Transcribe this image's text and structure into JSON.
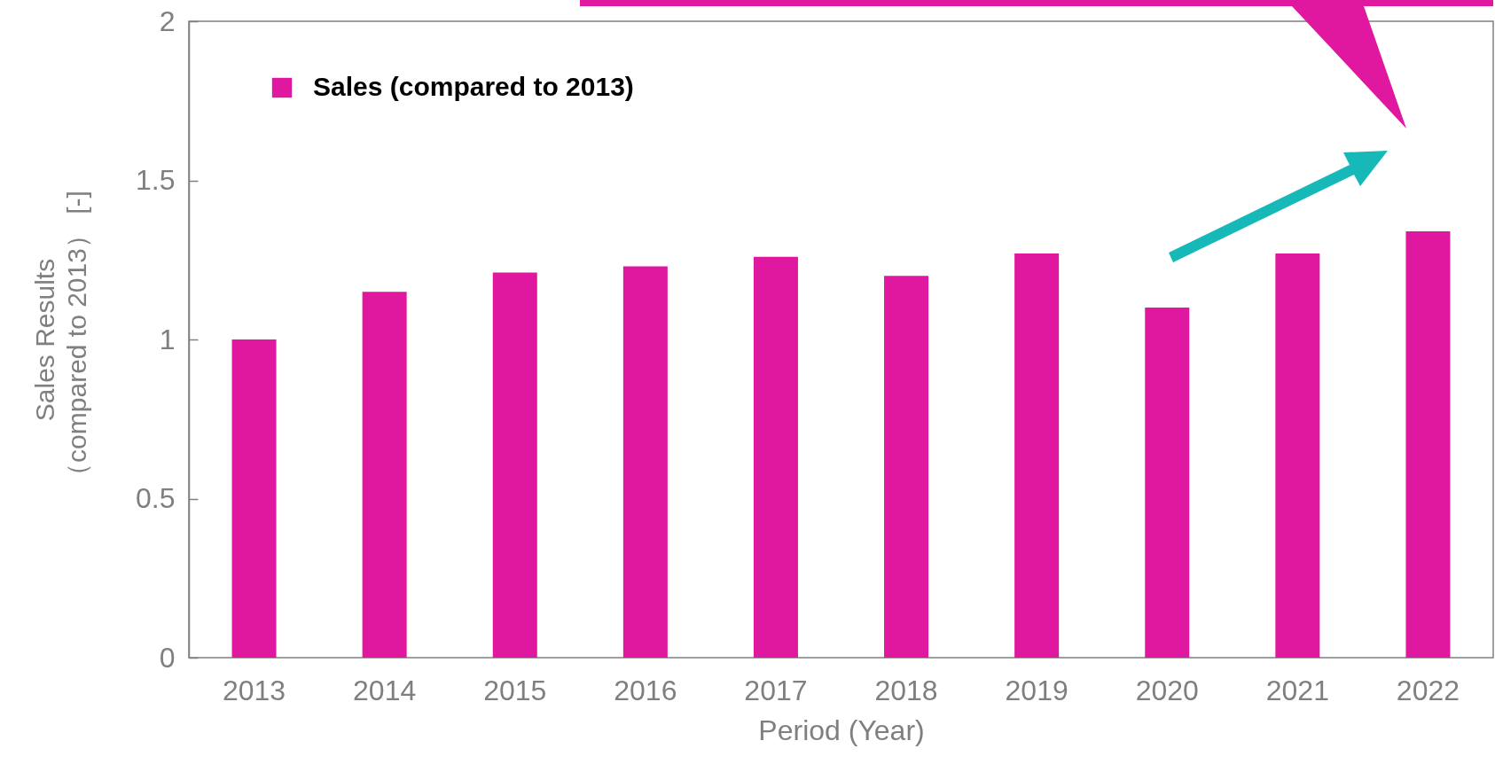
{
  "chart_data": {
    "type": "bar",
    "ylabel": "Sales Results\n（compared to 2013） [-]",
    "xlabel": "Period (Year)",
    "categories": [
      "2013",
      "2014",
      "2015",
      "2016",
      "2017",
      "2018",
      "2019",
      "2020",
      "2021",
      "2022"
    ],
    "series": [
      {
        "name": "Sales (compared to 2013)",
        "color": "#e0179f",
        "values": [
          1.0,
          1.15,
          1.21,
          1.23,
          1.26,
          1.2,
          1.27,
          1.1,
          1.27,
          1.34
        ]
      }
    ],
    "ylim": [
      0,
      2
    ],
    "yticks": [
      0,
      0.5,
      1,
      1.5,
      2
    ],
    "legend": "top left",
    "grid": false
  }
}
